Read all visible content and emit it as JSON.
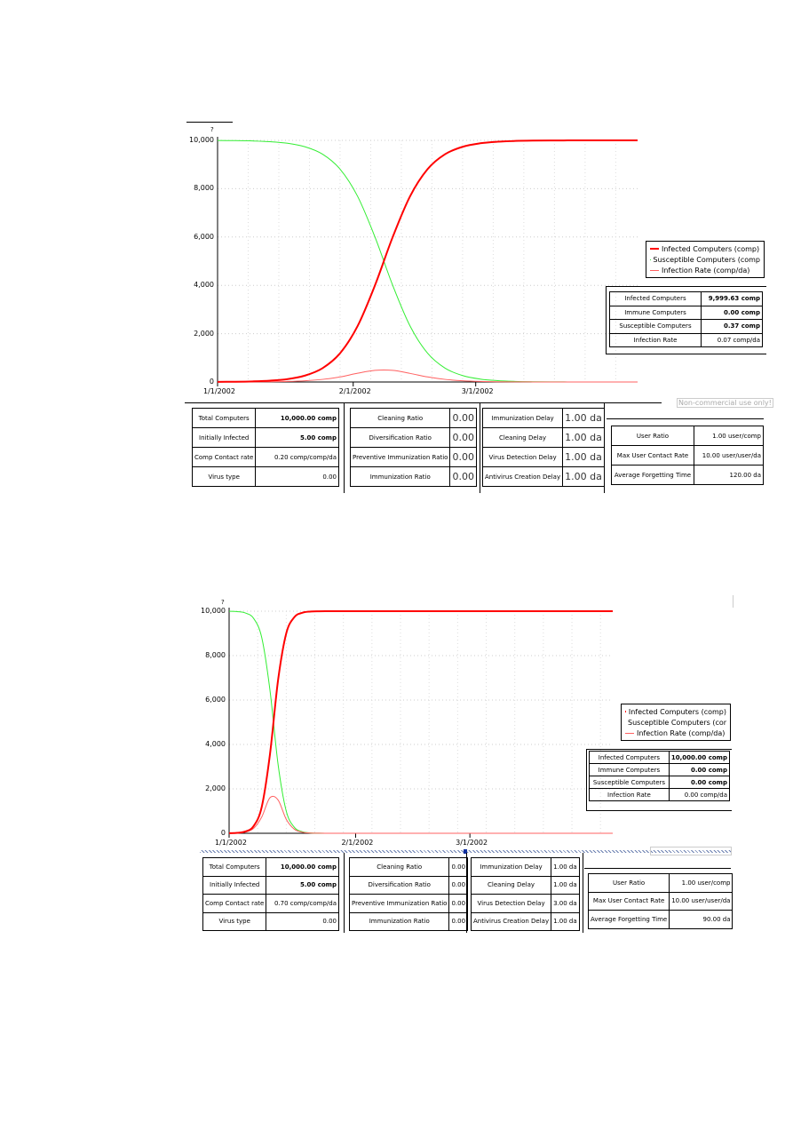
{
  "chart_data": [
    {
      "type": "line",
      "title": "",
      "question_mark": "?",
      "ylim": [
        0,
        10000
      ],
      "xlim_days": [
        0,
        96
      ],
      "y_ticks": [
        "0",
        "2,000",
        "4,000",
        "6,000",
        "8,000",
        "10,000"
      ],
      "y_tick_values": [
        0,
        2000,
        4000,
        6000,
        8000,
        10000
      ],
      "x_ticks": [
        "1/1/2002",
        "2/1/2002",
        "3/1/2002"
      ],
      "x_tick_days": [
        0,
        31,
        59
      ],
      "x": [
        0,
        4,
        8,
        12,
        16,
        20,
        24,
        28,
        32,
        36,
        40,
        44,
        48,
        52,
        56,
        60,
        64,
        68,
        72,
        76,
        80,
        84,
        88,
        92,
        96
      ],
      "series": [
        {
          "name": "Infected Computers (comp)",
          "color": "#ff0000",
          "width": 2,
          "values": [
            5,
            11,
            25,
            55,
            121,
            267,
            573,
            1192,
            2314,
            4011,
            5986,
            7685,
            8808,
            9427,
            9734,
            9879,
            9945,
            9975,
            9989,
            9995,
            9998,
            9999,
            9999.5,
            9999.6,
            9999.63
          ]
        },
        {
          "name": "Susceptible Computers (comp",
          "color": "#33ee33",
          "width": 1,
          "values": [
            9995,
            9989,
            9975,
            9945,
            9879,
            9733,
            9427,
            8808,
            7686,
            5989,
            4014,
            2315,
            1192,
            573,
            266,
            121,
            55,
            25,
            11,
            5,
            2,
            1,
            0.5,
            0.4,
            0.37
          ]
        },
        {
          "name": "Infection Rate (comp/da)",
          "color": "#ff6060",
          "width": 1,
          "values": [
            1,
            2.2,
            4.9,
            10.9,
            23.9,
            52,
            108,
            210,
            362,
            481,
            481,
            356,
            210,
            108,
            52,
            24,
            11,
            5,
            2.2,
            1,
            0.4,
            0.2,
            0.1,
            0.08,
            0.07
          ]
        }
      ],
      "status": [
        {
          "label": "Infected Computers",
          "value": "9,999.63 comp",
          "bold": true
        },
        {
          "label": "Immune Computers",
          "value": "0.00 comp",
          "bold": true
        },
        {
          "label": "Susceptible Computers",
          "value": "0.37 comp",
          "bold": true
        },
        {
          "label": "Infection Rate",
          "value": "0.07 comp/da",
          "bold": false
        }
      ],
      "note": "Non-commercial use only!",
      "params1": [
        {
          "label": "Total Computers",
          "value": "10,000.00 comp",
          "bold": true
        },
        {
          "label": "Initially Infected",
          "value": "5.00 comp",
          "bold": true
        },
        {
          "label": "Comp Contact rate",
          "value": "0.20 comp/comp/da",
          "bold": false
        },
        {
          "label": "Virus type",
          "value": "0.00",
          "bold": false
        }
      ],
      "params2": [
        {
          "label": "Cleaning Ratio",
          "value": "0.00"
        },
        {
          "label": "Diversification Ratio",
          "value": "0.00"
        },
        {
          "label": "Preventive Immunization Ratio",
          "value": "0.00"
        },
        {
          "label": "Immunization Ratio",
          "value": "0.00"
        }
      ],
      "params3": [
        {
          "label": "Immunization Delay",
          "value": "1.00 da"
        },
        {
          "label": "Cleaning Delay",
          "value": "1.00 da"
        },
        {
          "label": "Virus Detection Delay",
          "value": "1.00 da"
        },
        {
          "label": "Antivirus Creation Delay",
          "value": "1.00 da"
        }
      ],
      "params4": [
        {
          "label": "User Ratio",
          "value": "1.00 user/comp"
        },
        {
          "label": "Max User Contact Rate",
          "value": "10.00 user/user/da"
        },
        {
          "label": "Average Forgetting Time",
          "value": "120.00 da"
        }
      ]
    },
    {
      "type": "line",
      "title": "",
      "question_mark": "?",
      "ylim": [
        0,
        10000
      ],
      "xlim_days": [
        0,
        94
      ],
      "y_ticks": [
        "0",
        "2,000",
        "4,000",
        "6,000",
        "8,000",
        "10,000"
      ],
      "y_tick_values": [
        0,
        2000,
        4000,
        6000,
        8000,
        10000
      ],
      "x_ticks": [
        "1/1/2002",
        "2/1/2002",
        "3/1/2002"
      ],
      "x_tick_days": [
        0,
        31,
        59
      ],
      "x": [
        0,
        2,
        4,
        6,
        8,
        10,
        12,
        14,
        16,
        18,
        20,
        22,
        24,
        26,
        30,
        40,
        60,
        94
      ],
      "series": [
        {
          "name": "Infected Computers (comp)",
          "color": "#ff0000",
          "width": 2,
          "values": [
            5,
            20,
            82,
            323,
            1191,
            3542,
            6900,
            9001,
            9734,
            9933,
            9984,
            9996,
            9999,
            10000,
            10000,
            10000,
            10000,
            10000
          ]
        },
        {
          "name": "Susceptible Computers (comp",
          "color": "#33ee33",
          "width": 1,
          "values": [
            9995,
            9980,
            9918,
            9677,
            8809,
            6458,
            3100,
            999,
            266,
            67,
            16,
            4,
            1,
            0,
            0,
            0,
            0,
            0
          ]
        },
        {
          "name": "Infection Rate (comp/da)",
          "color": "#ff6060",
          "width": 1,
          "values": [
            3.5,
            14,
            56,
            219,
            734,
            1600,
            1498,
            630,
            182,
            46,
            11,
            3,
            0.7,
            0,
            0,
            0,
            0,
            0
          ]
        }
      ],
      "status": [
        {
          "label": "Infected Computers",
          "value": "10,000.00 comp",
          "bold": true
        },
        {
          "label": "Immune Computers",
          "value": "0.00 comp",
          "bold": true
        },
        {
          "label": "Susceptible Computers",
          "value": "0.00 comp",
          "bold": true
        },
        {
          "label": "Infection Rate",
          "value": "0.00 comp/da",
          "bold": false
        }
      ],
      "params1": [
        {
          "label": "Total Computers",
          "value": "10,000.00 comp",
          "bold": true
        },
        {
          "label": "Initially Infected",
          "value": "5.00 comp",
          "bold": true
        },
        {
          "label": "Comp Contact rate",
          "value": "0.70 comp/comp/da",
          "bold": false
        },
        {
          "label": "Virus type",
          "value": "0.00",
          "bold": false
        }
      ],
      "params2": [
        {
          "label": "Cleaning Ratio",
          "value": "0.00"
        },
        {
          "label": "Diversification Ratio",
          "value": "0.00"
        },
        {
          "label": "Preventive Immunization Ratio",
          "value": "0.00"
        },
        {
          "label": "Immunization Ratio",
          "value": "0.00"
        }
      ],
      "params3": [
        {
          "label": "Immunization Delay",
          "value": "1.00 da"
        },
        {
          "label": "Cleaning Delay",
          "value": "1.00 da"
        },
        {
          "label": "Virus Detection Delay",
          "value": "3.00 da"
        },
        {
          "label": "Antivirus Creation Delay",
          "value": "1.00 da"
        }
      ],
      "params4": [
        {
          "label": "User Ratio",
          "value": "1.00 user/comp"
        },
        {
          "label": "Max User Contact Rate",
          "value": "10.00 user/user/da"
        },
        {
          "label": "Average Forgetting Time",
          "value": "90.00 da"
        }
      ]
    }
  ]
}
